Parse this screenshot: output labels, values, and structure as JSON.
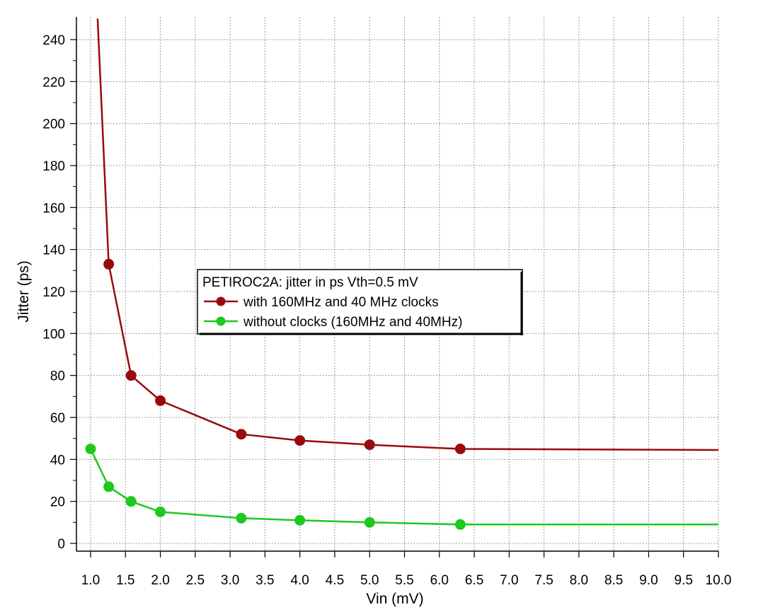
{
  "chart_data": {
    "type": "line",
    "title": "",
    "xlabel": "Vin (mV)",
    "ylabel": "Jitter (ps)",
    "xlim": [
      0.9,
      10.0
    ],
    "ylim": [
      -2,
      250
    ],
    "grid": true,
    "x_ticks": [
      1.0,
      1.5,
      2.0,
      2.5,
      3.0,
      3.5,
      4.0,
      4.5,
      5.0,
      5.5,
      6.0,
      6.5,
      7.0,
      7.5,
      8.0,
      8.5,
      9.0,
      9.5,
      10.0
    ],
    "x_tick_labels": [
      "1.0",
      "1.5",
      "2.0",
      "2.5",
      "3.0",
      "3.5",
      "4.0",
      "4.5",
      "5.0",
      "5.5",
      "6.0",
      "6.5",
      "7.0",
      "7.5",
      "8.0",
      "8.5",
      "9.0",
      "9.5",
      "10.0"
    ],
    "y_ticks": [
      0,
      20,
      40,
      60,
      80,
      100,
      120,
      140,
      160,
      180,
      200,
      220,
      240
    ],
    "y_tick_labels": [
      "0",
      "20",
      "40",
      "60",
      "80",
      "100",
      "120",
      "140",
      "160",
      "180",
      "200",
      "220",
      "240"
    ],
    "legend": {
      "title": "PETIROC2A: jitter in ps Vth=0.5 mV",
      "placement": "center-left"
    },
    "series": [
      {
        "name": "with 160MHz and 40 MHz clocks",
        "color": "#9b0a0a",
        "markers": [
          {
            "x": 1.26,
            "y": 133
          },
          {
            "x": 1.58,
            "y": 80
          },
          {
            "x": 2.0,
            "y": 68
          },
          {
            "x": 3.16,
            "y": 52
          },
          {
            "x": 4.0,
            "y": 49
          },
          {
            "x": 5.0,
            "y": 47
          },
          {
            "x": 6.3,
            "y": 45
          }
        ],
        "curve": [
          {
            "x": 1.1,
            "y": 250
          },
          {
            "x": 1.26,
            "y": 133
          },
          {
            "x": 1.58,
            "y": 80
          },
          {
            "x": 2.0,
            "y": 68
          },
          {
            "x": 3.16,
            "y": 52
          },
          {
            "x": 4.0,
            "y": 49
          },
          {
            "x": 5.0,
            "y": 47
          },
          {
            "x": 6.3,
            "y": 45
          },
          {
            "x": 10.0,
            "y": 44.5
          }
        ]
      },
      {
        "name": "without clocks (160MHz and 40MHz)",
        "color": "#1ec81e",
        "markers": [
          {
            "x": 1.0,
            "y": 45
          },
          {
            "x": 1.26,
            "y": 27
          },
          {
            "x": 1.58,
            "y": 20
          },
          {
            "x": 2.0,
            "y": 15
          },
          {
            "x": 3.16,
            "y": 12
          },
          {
            "x": 4.0,
            "y": 11
          },
          {
            "x": 5.0,
            "y": 10
          },
          {
            "x": 6.3,
            "y": 9
          }
        ],
        "curve": [
          {
            "x": 1.0,
            "y": 45
          },
          {
            "x": 1.26,
            "y": 27
          },
          {
            "x": 1.58,
            "y": 20
          },
          {
            "x": 2.0,
            "y": 15
          },
          {
            "x": 3.16,
            "y": 12
          },
          {
            "x": 4.0,
            "y": 11
          },
          {
            "x": 5.0,
            "y": 10
          },
          {
            "x": 6.3,
            "y": 9
          },
          {
            "x": 10.0,
            "y": 9
          }
        ]
      }
    ]
  }
}
